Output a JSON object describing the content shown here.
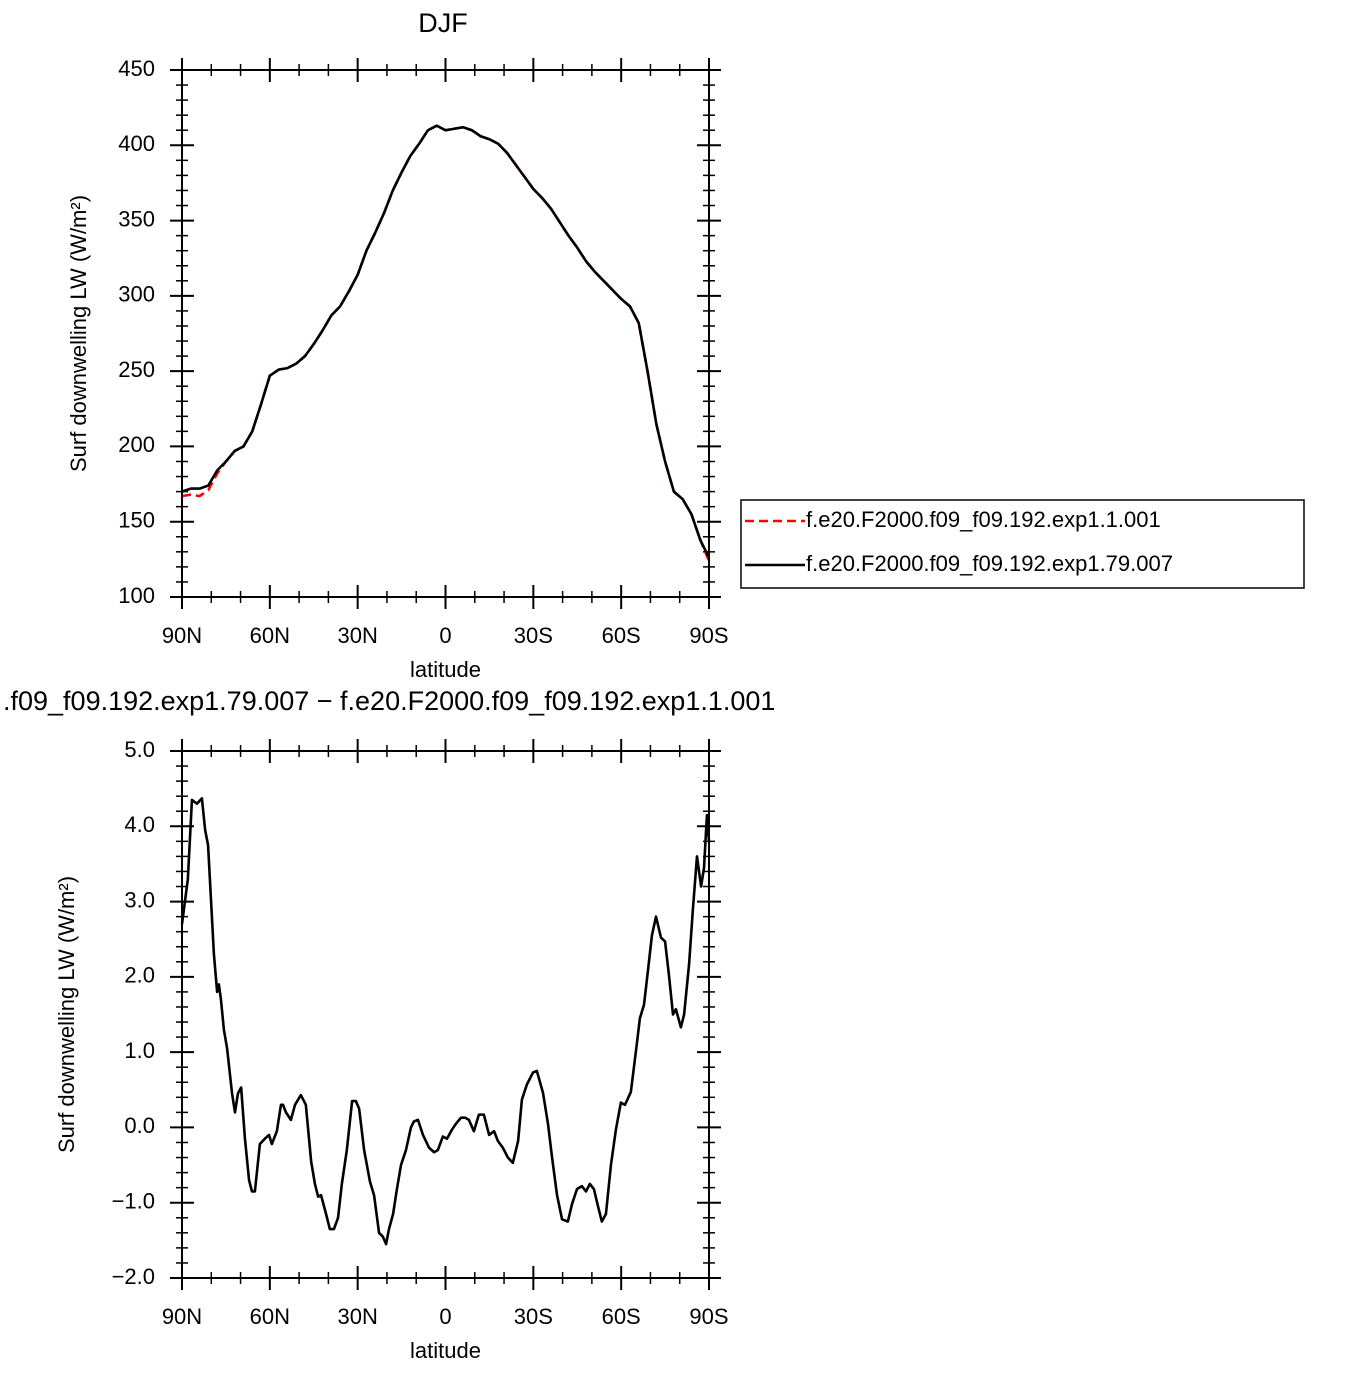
{
  "chart_data": [
    {
      "type": "line",
      "title": "DJF",
      "xlabel": "latitude",
      "ylabel": "Surf downwelling LW (W/m²)",
      "xlim": [
        90,
        -90
      ],
      "xticks": [
        {
          "value": 90,
          "label": "90N"
        },
        {
          "value": 60,
          "label": "60N"
        },
        {
          "value": 30,
          "label": "30N"
        },
        0,
        {
          "value": -30,
          "label": "30S"
        },
        {
          "value": -60,
          "label": "60S"
        },
        {
          "value": -90,
          "label": "90S"
        }
      ],
      "ylim": [
        100,
        450
      ],
      "yticks": [
        100,
        150,
        200,
        250,
        300,
        350,
        400,
        450
      ],
      "legend": "right",
      "x": [
        90,
        87,
        84,
        81,
        78,
        75,
        72,
        69,
        66,
        63,
        60,
        57,
        54,
        51,
        48,
        45,
        42,
        39,
        36,
        33,
        30,
        27,
        24,
        21,
        18,
        15,
        12,
        9,
        6,
        3,
        0,
        -3,
        -6,
        -9,
        -12,
        -15,
        -18,
        -21,
        -24,
        -27,
        -30,
        -33,
        -36,
        -39,
        -42,
        -45,
        -48,
        -51,
        -54,
        -57,
        -60,
        -63,
        -66,
        -69,
        -72,
        -75,
        -78,
        -81,
        -84,
        -87,
        -90
      ],
      "series": [
        {
          "name": "f.e20.F2000.f09_f09.192.exp1.1.001",
          "color": "#ff0000",
          "dash": true,
          "values": [
            167,
            168,
            167,
            171,
            182,
            190,
            197,
            200,
            210,
            228,
            247,
            251,
            252,
            255,
            260,
            268,
            277,
            287,
            293,
            303,
            314,
            330,
            342,
            355,
            370,
            382,
            393,
            401,
            410,
            413,
            410,
            411,
            412,
            410,
            406,
            404,
            401,
            395,
            387,
            379,
            371,
            365,
            358,
            349,
            340,
            332,
            323,
            316,
            310,
            304,
            298,
            293,
            282,
            250,
            215,
            190,
            170,
            165,
            155,
            138,
            124
          ]
        },
        {
          "name": "f.e20.F2000.f09_f09.192.exp1.79.007",
          "color": "#000000",
          "dash": false,
          "values": [
            170,
            172,
            172,
            174,
            184,
            190,
            197,
            200,
            210,
            228,
            247,
            251,
            252,
            255,
            260,
            268,
            277,
            287,
            293,
            303,
            314,
            330,
            342,
            355,
            370,
            382,
            393,
            401,
            410,
            413,
            410,
            411,
            412,
            410,
            406,
            404,
            401,
            395,
            387,
            379,
            371,
            365,
            358,
            349,
            340,
            332,
            323,
            316,
            310,
            304,
            298,
            293,
            282,
            250,
            215,
            190,
            170,
            165,
            155,
            138,
            126
          ]
        }
      ]
    },
    {
      "type": "line",
      "title": ".f09_f09.192.exp1.79.007 − f.e20.F2000.f09_f09.192.exp1.1.001",
      "xlabel": "latitude",
      "ylabel": "Surf downwelling LW (W/m²)",
      "xlim": [
        90,
        -90
      ],
      "xticks": [
        {
          "value": 90,
          "label": "90N"
        },
        {
          "value": 60,
          "label": "60N"
        },
        {
          "value": 30,
          "label": "30N"
        },
        0,
        {
          "value": -30,
          "label": "30S"
        },
        {
          "value": -60,
          "label": "60S"
        },
        {
          "value": -90,
          "label": "90S"
        }
      ],
      "ylim": [
        -2,
        5
      ],
      "yticks": [
        {
          "value": -2,
          "label": "−2.0"
        },
        {
          "value": -1,
          "label": "−1.0"
        },
        {
          "value": 0,
          "label": "0.0"
        },
        {
          "value": 1,
          "label": "1.0"
        },
        {
          "value": 2,
          "label": "2.0"
        },
        {
          "value": 3,
          "label": "3.0"
        },
        {
          "value": 4,
          "label": "4.0"
        },
        {
          "value": 5,
          "label": "5.0"
        }
      ],
      "x": [
        90,
        88.0,
        86.6,
        84.9,
        83.2,
        82.1,
        81.1,
        79.1,
        78.0,
        77.4,
        76.7,
        75.7,
        74.6,
        72.9,
        71.9,
        70.9,
        69.8,
        68.5,
        67.1,
        66.1,
        65.1,
        63.4,
        61.7,
        60.3,
        59.3,
        57.6,
        56.2,
        55.5,
        54.5,
        52.8,
        51.4,
        49.4,
        47.7,
        45.9,
        44.6,
        43.5,
        42.5,
        40.8,
        39.5,
        38.1,
        36.7,
        35.4,
        33.7,
        31.9,
        30.6,
        29.5,
        27.8,
        25.8,
        24.4,
        22.7,
        21.4,
        20.3,
        19.3,
        17.9,
        16.6,
        15.2,
        13.5,
        11.8,
        10.8,
        9.4,
        7.7,
        5.6,
        3.9,
        2.6,
        0.9,
        -0.5,
        -2.2,
        -3.6,
        -5.3,
        -6.7,
        -8.0,
        -9.7,
        -11.4,
        -13.1,
        -14.9,
        -16.6,
        -17.9,
        -19.6,
        -21.3,
        -23.0,
        -24.8,
        -26.1,
        -27.8,
        -29.9,
        -31.2,
        -33.3,
        -35.0,
        -36.4,
        -38.1,
        -39.8,
        -41.8,
        -43.2,
        -44.9,
        -46.6,
        -48.0,
        -49.3,
        -50.7,
        -52.1,
        -53.4,
        -54.8,
        -56.5,
        -58.2,
        -59.9,
        -61.3,
        -63.3,
        -65.1,
        -66.4,
        -67.8,
        -69.2,
        -70.5,
        -71.9,
        -73.6,
        -75.0,
        -76.3,
        -77.7,
        -78.7,
        -80.4,
        -81.5,
        -83.2,
        -84.5,
        -85.9,
        -87.3,
        -88.3,
        -89.3,
        -90
      ],
      "series": [
        {
          "color": "#000000",
          "dash": false,
          "values": [
            2.7,
            3.3,
            4.35,
            4.3,
            4.37,
            3.95,
            3.75,
            2.3,
            1.8,
            1.9,
            1.7,
            1.3,
            1.05,
            0.45,
            0.2,
            0.45,
            0.53,
            -0.15,
            -0.7,
            -0.85,
            -0.85,
            -0.22,
            -0.15,
            -0.1,
            -0.22,
            -0.05,
            0.3,
            0.3,
            0.2,
            0.1,
            0.3,
            0.43,
            0.3,
            -0.45,
            -0.75,
            -0.92,
            -0.9,
            -1.15,
            -1.35,
            -1.35,
            -1.2,
            -0.75,
            -0.3,
            0.35,
            0.35,
            0.25,
            -0.3,
            -0.72,
            -0.9,
            -1.4,
            -1.45,
            -1.55,
            -1.35,
            -1.15,
            -0.82,
            -0.5,
            -0.3,
            0,
            0.08,
            0.1,
            -0.1,
            -0.27,
            -0.33,
            -0.3,
            -0.12,
            -0.15,
            -0.03,
            0.05,
            0.13,
            0.13,
            0.1,
            -0.05,
            0.17,
            0.17,
            -0.1,
            -0.05,
            -0.18,
            -0.27,
            -0.4,
            -0.47,
            -0.18,
            0.37,
            0.57,
            0.73,
            0.75,
            0.46,
            0.05,
            -0.4,
            -0.9,
            -1.22,
            -1.25,
            -1.02,
            -0.82,
            -0.78,
            -0.85,
            -0.75,
            -0.82,
            -1.05,
            -1.25,
            -1.15,
            -0.5,
            -0.03,
            0.33,
            0.3,
            0.47,
            1.03,
            1.45,
            1.63,
            2.1,
            2.55,
            2.8,
            2.52,
            2.47,
            2.03,
            1.5,
            1.57,
            1.33,
            1.5,
            2.17,
            2.9,
            3.6,
            3.2,
            3.45,
            4.15,
            3.8
          ]
        }
      ]
    }
  ]
}
